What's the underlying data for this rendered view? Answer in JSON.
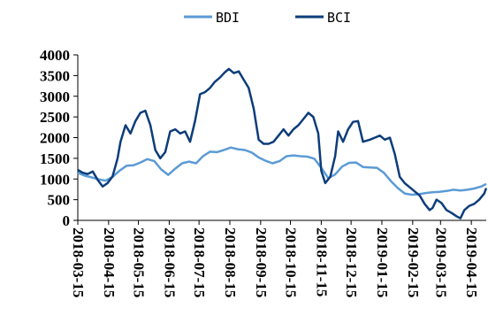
{
  "chart_data": {
    "type": "line",
    "title": "",
    "xlabel": "",
    "ylabel": "",
    "ylim": [
      0,
      4000
    ],
    "yticks": [
      0,
      500,
      1000,
      1500,
      2000,
      2500,
      3000,
      3500,
      4000
    ],
    "x_tick_labels": [
      "2018-03-15",
      "2018-04-15",
      "2018-05-15",
      "2018-06-15",
      "2018-07-15",
      "2018-08-15",
      "2018-09-15",
      "2018-10-15",
      "2018-11-15",
      "2018-12-15",
      "2019-01-15",
      "2019-02-15",
      "2019-03-15",
      "2019-04-15"
    ],
    "x_range": [
      "2018-03-15",
      "2019-04-30"
    ],
    "grid": false,
    "legend_position": "top-center",
    "series": [
      {
        "name": "BDI",
        "color": "#5b9bd5",
        "points": [
          [
            "2018-03-15",
            1150
          ],
          [
            "2018-03-22",
            1080
          ],
          [
            "2018-03-29",
            1040
          ],
          [
            "2018-04-05",
            990
          ],
          [
            "2018-04-12",
            960
          ],
          [
            "2018-04-19",
            1050
          ],
          [
            "2018-04-26",
            1200
          ],
          [
            "2018-05-03",
            1320
          ],
          [
            "2018-05-10",
            1330
          ],
          [
            "2018-05-17",
            1400
          ],
          [
            "2018-05-24",
            1480
          ],
          [
            "2018-05-31",
            1430
          ],
          [
            "2018-06-07",
            1230
          ],
          [
            "2018-06-14",
            1100
          ],
          [
            "2018-06-21",
            1250
          ],
          [
            "2018-06-28",
            1380
          ],
          [
            "2018-07-05",
            1420
          ],
          [
            "2018-07-12",
            1380
          ],
          [
            "2018-07-19",
            1550
          ],
          [
            "2018-07-26",
            1660
          ],
          [
            "2018-08-02",
            1650
          ],
          [
            "2018-08-09",
            1700
          ],
          [
            "2018-08-16",
            1760
          ],
          [
            "2018-08-23",
            1720
          ],
          [
            "2018-08-30",
            1700
          ],
          [
            "2018-09-06",
            1640
          ],
          [
            "2018-09-13",
            1520
          ],
          [
            "2018-09-20",
            1440
          ],
          [
            "2018-09-27",
            1380
          ],
          [
            "2018-10-04",
            1430
          ],
          [
            "2018-10-11",
            1550
          ],
          [
            "2018-10-18",
            1570
          ],
          [
            "2018-10-25",
            1550
          ],
          [
            "2018-11-01",
            1540
          ],
          [
            "2018-11-08",
            1490
          ],
          [
            "2018-11-15",
            1270
          ],
          [
            "2018-11-22",
            1020
          ],
          [
            "2018-11-29",
            1110
          ],
          [
            "2018-12-06",
            1300
          ],
          [
            "2018-12-13",
            1390
          ],
          [
            "2018-12-20",
            1400
          ],
          [
            "2018-12-27",
            1290
          ],
          [
            "2019-01-03",
            1280
          ],
          [
            "2019-01-10",
            1270
          ],
          [
            "2019-01-17",
            1150
          ],
          [
            "2019-01-24",
            950
          ],
          [
            "2019-01-31",
            780
          ],
          [
            "2019-02-07",
            650
          ],
          [
            "2019-02-14",
            620
          ],
          [
            "2019-02-21",
            630
          ],
          [
            "2019-02-28",
            660
          ],
          [
            "2019-03-07",
            680
          ],
          [
            "2019-03-14",
            690
          ],
          [
            "2019-03-21",
            710
          ],
          [
            "2019-03-28",
            740
          ],
          [
            "2019-04-04",
            720
          ],
          [
            "2019-04-11",
            740
          ],
          [
            "2019-04-18",
            770
          ],
          [
            "2019-04-25",
            820
          ],
          [
            "2019-04-30",
            880
          ]
        ]
      },
      {
        "name": "BCI",
        "color": "#0d3d7a",
        "points": [
          [
            "2018-03-15",
            1220
          ],
          [
            "2018-03-20",
            1150
          ],
          [
            "2018-03-25",
            1120
          ],
          [
            "2018-03-30",
            1180
          ],
          [
            "2018-04-04",
            980
          ],
          [
            "2018-04-09",
            820
          ],
          [
            "2018-04-14",
            900
          ],
          [
            "2018-04-19",
            1060
          ],
          [
            "2018-04-24",
            1500
          ],
          [
            "2018-04-27",
            1900
          ],
          [
            "2018-05-02",
            2300
          ],
          [
            "2018-05-07",
            2100
          ],
          [
            "2018-05-12",
            2400
          ],
          [
            "2018-05-17",
            2600
          ],
          [
            "2018-05-22",
            2650
          ],
          [
            "2018-05-27",
            2300
          ],
          [
            "2018-06-01",
            1700
          ],
          [
            "2018-06-06",
            1500
          ],
          [
            "2018-06-11",
            1650
          ],
          [
            "2018-06-16",
            2150
          ],
          [
            "2018-06-21",
            2200
          ],
          [
            "2018-06-26",
            2100
          ],
          [
            "2018-07-01",
            2150
          ],
          [
            "2018-07-06",
            1900
          ],
          [
            "2018-07-11",
            2400
          ],
          [
            "2018-07-16",
            3050
          ],
          [
            "2018-07-21",
            3100
          ],
          [
            "2018-07-26",
            3200
          ],
          [
            "2018-07-31",
            3350
          ],
          [
            "2018-08-05",
            3450
          ],
          [
            "2018-08-10",
            3580
          ],
          [
            "2018-08-14",
            3660
          ],
          [
            "2018-08-19",
            3560
          ],
          [
            "2018-08-24",
            3600
          ],
          [
            "2018-08-29",
            3400
          ],
          [
            "2018-09-03",
            3200
          ],
          [
            "2018-09-08",
            2700
          ],
          [
            "2018-09-13",
            1950
          ],
          [
            "2018-09-18",
            1850
          ],
          [
            "2018-09-23",
            1850
          ],
          [
            "2018-09-28",
            1900
          ],
          [
            "2018-10-03",
            2050
          ],
          [
            "2018-10-08",
            2200
          ],
          [
            "2018-10-13",
            2050
          ],
          [
            "2018-10-18",
            2200
          ],
          [
            "2018-10-23",
            2300
          ],
          [
            "2018-10-28",
            2450
          ],
          [
            "2018-11-02",
            2600
          ],
          [
            "2018-11-07",
            2500
          ],
          [
            "2018-11-12",
            2100
          ],
          [
            "2018-11-15",
            1200
          ],
          [
            "2018-11-19",
            900
          ],
          [
            "2018-11-24",
            1050
          ],
          [
            "2018-11-29",
            1550
          ],
          [
            "2018-12-02",
            2150
          ],
          [
            "2018-12-07",
            1900
          ],
          [
            "2018-12-12",
            2200
          ],
          [
            "2018-12-17",
            2380
          ],
          [
            "2018-12-22",
            2400
          ],
          [
            "2018-12-27",
            1900
          ],
          [
            "2019-01-03",
            1950
          ],
          [
            "2019-01-08",
            2000
          ],
          [
            "2019-01-13",
            2050
          ],
          [
            "2019-01-18",
            1950
          ],
          [
            "2019-01-23",
            2000
          ],
          [
            "2019-01-28",
            1600
          ],
          [
            "2019-02-02",
            1050
          ],
          [
            "2019-02-07",
            900
          ],
          [
            "2019-02-12",
            800
          ],
          [
            "2019-02-17",
            700
          ],
          [
            "2019-02-22",
            600
          ],
          [
            "2019-02-27",
            400
          ],
          [
            "2019-03-04",
            250
          ],
          [
            "2019-03-07",
            300
          ],
          [
            "2019-03-11",
            500
          ],
          [
            "2019-03-16",
            420
          ],
          [
            "2019-03-21",
            250
          ],
          [
            "2019-03-26",
            180
          ],
          [
            "2019-03-31",
            100
          ],
          [
            "2019-04-04",
            50
          ],
          [
            "2019-04-08",
            250
          ],
          [
            "2019-04-13",
            350
          ],
          [
            "2019-04-18",
            400
          ],
          [
            "2019-04-23",
            500
          ],
          [
            "2019-04-28",
            650
          ],
          [
            "2019-04-30",
            780
          ]
        ]
      }
    ]
  }
}
